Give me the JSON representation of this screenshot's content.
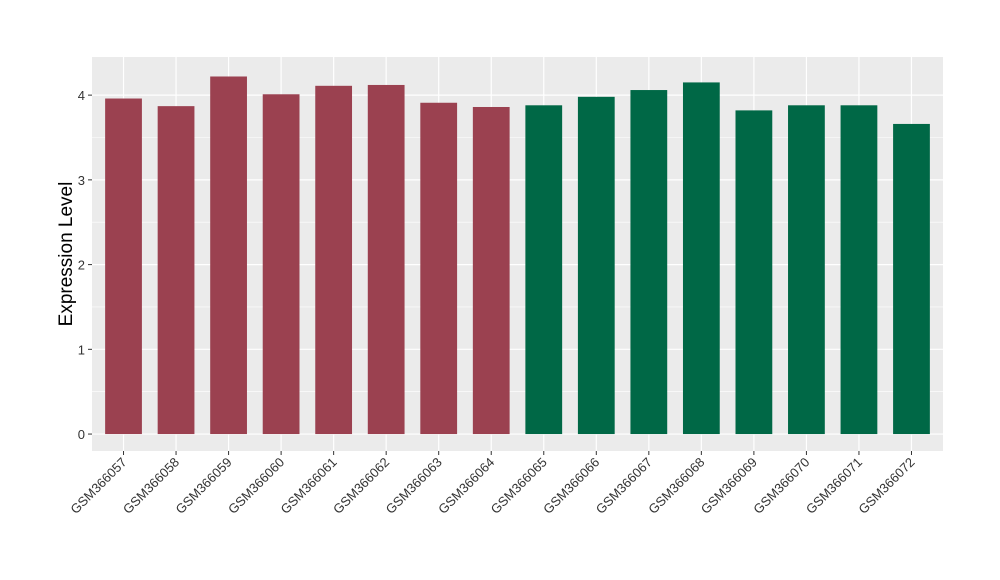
{
  "chart_data": {
    "type": "bar",
    "title": "",
    "xlabel": "",
    "ylabel": "Expression Level",
    "ylim": [
      -0.2,
      4.45
    ],
    "yticks": [
      0,
      1,
      2,
      3,
      4
    ],
    "grid": true,
    "legend": "none",
    "categories": [
      "GSM366057",
      "GSM366058",
      "GSM366059",
      "GSM366060",
      "GSM366061",
      "GSM366062",
      "GSM366063",
      "GSM366064",
      "GSM366065",
      "GSM366066",
      "GSM366067",
      "GSM366068",
      "GSM366069",
      "GSM366070",
      "GSM366071",
      "GSM366072"
    ],
    "values": [
      3.96,
      3.87,
      4.22,
      4.01,
      4.11,
      4.12,
      3.91,
      3.86,
      3.88,
      3.98,
      4.06,
      4.15,
      3.82,
      3.88,
      3.88,
      3.66
    ],
    "bar_colors": [
      "#9b4150",
      "#9b4150",
      "#9b4150",
      "#9b4150",
      "#9b4150",
      "#9b4150",
      "#9b4150",
      "#9b4150",
      "#006846",
      "#006846",
      "#006846",
      "#006846",
      "#006846",
      "#006846",
      "#006846",
      "#006846"
    ],
    "panel_background": "#ebebeb",
    "grid_color": "#ffffff"
  }
}
